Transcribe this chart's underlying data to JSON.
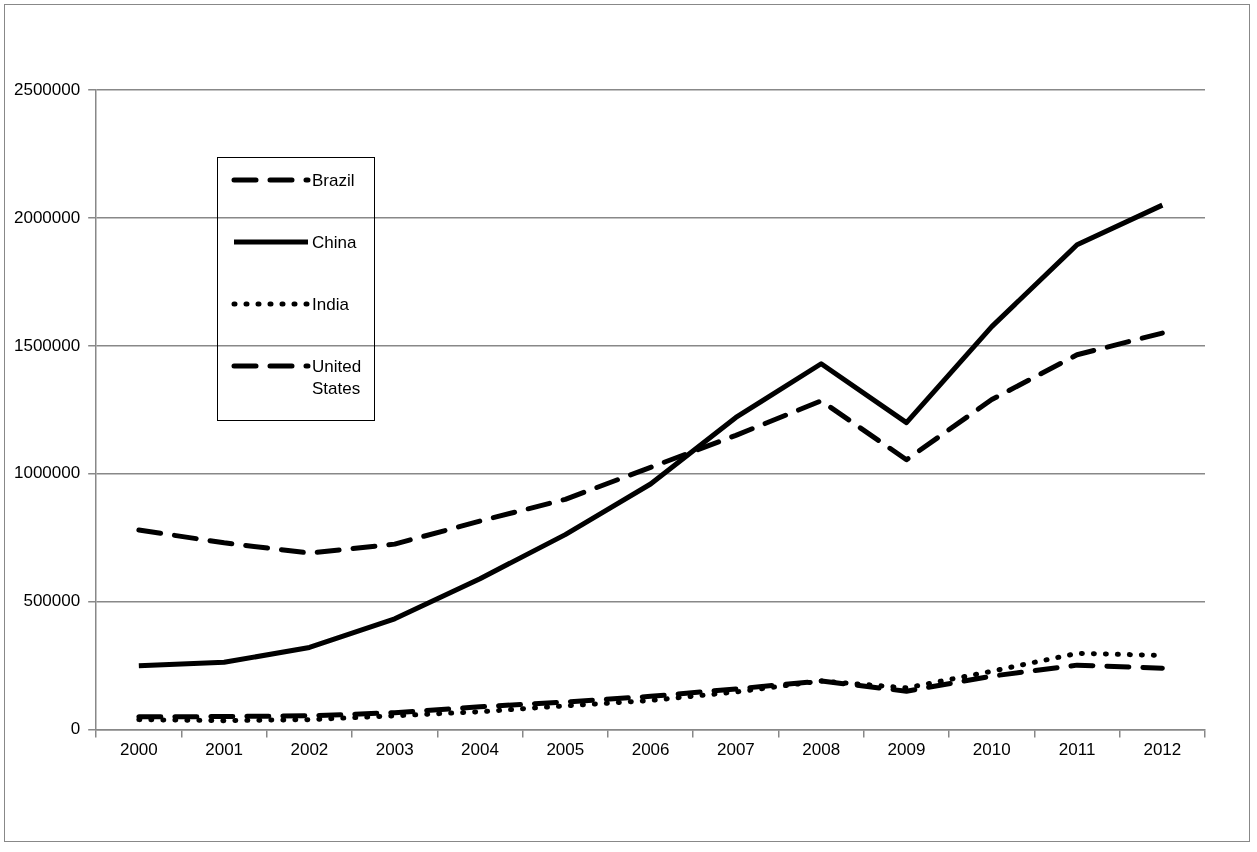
{
  "chart_data": {
    "type": "line",
    "categories": [
      "2000",
      "2001",
      "2002",
      "2003",
      "2004",
      "2005",
      "2006",
      "2007",
      "2008",
      "2009",
      "2010",
      "2011",
      "2012"
    ],
    "series": [
      {
        "name": "Brazil",
        "color": "#000000",
        "line_style": "dashed",
        "values": [
          50000,
          51000,
          54000,
          66000,
          89000,
          108000,
          130000,
          159000,
          190000,
          150000,
          209000,
          252000,
          240000
        ]
      },
      {
        "name": "China",
        "color": "#000000",
        "line_style": "solid",
        "values": [
          250000,
          263000,
          321000,
          433000,
          590000,
          762000,
          960000,
          1220000,
          1430000,
          1200000,
          1575000,
          1895000,
          2050000
        ]
      },
      {
        "name": "India",
        "color": "#000000",
        "line_style": "dotted",
        "values": [
          39000,
          35000,
          39000,
          54000,
          70000,
          93000,
          114000,
          147000,
          190000,
          163000,
          228000,
          298000,
          290000
        ]
      },
      {
        "name": "United States",
        "color": "#000000",
        "line_style": "dashed",
        "values": [
          780000,
          730000,
          690000,
          725000,
          815000,
          900000,
          1025000,
          1150000,
          1285000,
          1055000,
          1290000,
          1465000,
          1550000
        ]
      }
    ],
    "ylim": [
      0,
      2500000
    ],
    "yticks": [
      0,
      500000,
      1000000,
      1500000,
      2000000,
      2500000
    ],
    "grid": "y",
    "legend": "top left",
    "marker": "none"
  }
}
